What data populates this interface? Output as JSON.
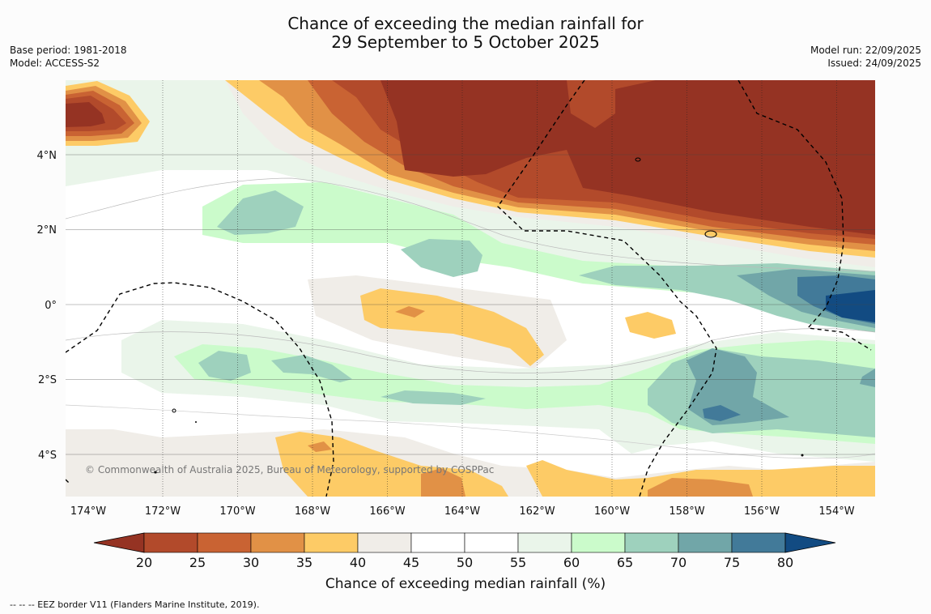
{
  "title": {
    "line1": "Chance of exceeding the median rainfall for",
    "line2": "29 September to 5 October 2025"
  },
  "meta": {
    "base_period": "Base period: 1981-2018",
    "model": "Model: ACCESS-S2",
    "model_run": "Model run: 22/09/2025",
    "issued": "Issued: 24/09/2025"
  },
  "map": {
    "lat_ticks": [
      "4°N",
      "2°N",
      "0°",
      "2°S",
      "4°S"
    ],
    "lon_ticks": [
      "174°W",
      "172°W",
      "170°W",
      "168°W",
      "166°W",
      "164°W",
      "162°W",
      "160°W",
      "158°W",
      "156°W",
      "154°W"
    ],
    "copyright": "© Commonwealth of Australia 2025, Bureau of Meteorology, supported by COSPPac"
  },
  "colorbar": {
    "labels": [
      "20",
      "25",
      "30",
      "35",
      "40",
      "45",
      "50",
      "55",
      "60",
      "65",
      "70",
      "75",
      "80"
    ],
    "colors": [
      "#953323",
      "#b24a2b",
      "#c96333",
      "#e19146",
      "#fdcb66",
      "#f0ede8",
      "#ffffff",
      "#ffffff",
      "#eaf5ea",
      "#cbfbcb",
      "#9ed1bd",
      "#71a6a8",
      "#427a99",
      "#124b82"
    ],
    "title": "Chance of exceeding median rainfall (%)"
  },
  "footer": "--  --  -- EEZ border V11 (Flanders Marine Institute, 2019)."
}
